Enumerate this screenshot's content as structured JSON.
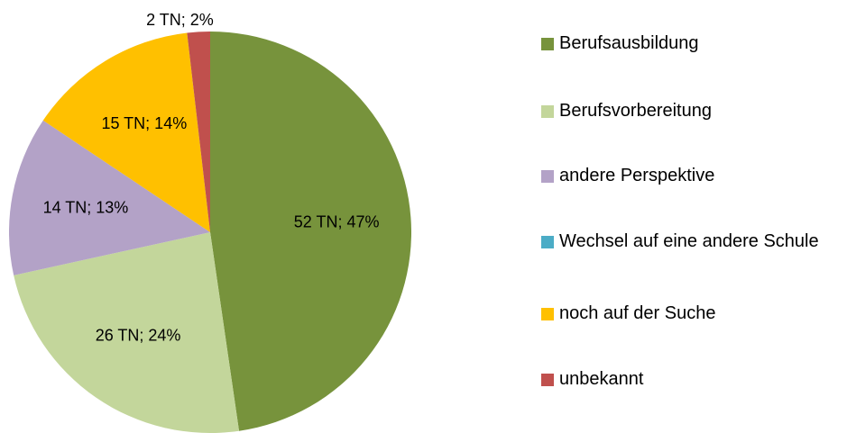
{
  "chart_data": {
    "type": "pie",
    "categories": [
      "Berufsausbildung",
      "Berufsvorbereitung",
      "andere Perspektive",
      "Wechsel auf eine andere Schule",
      "noch auf der Suche",
      "unbekannt"
    ],
    "values": [
      52,
      26,
      14,
      0,
      15,
      2
    ],
    "value_labels": [
      "52 TN;  47%",
      "26 TN;  24%",
      "14 TN;  13%",
      null,
      "15 TN;  14%",
      "2 TN;  2%"
    ],
    "colors": [
      "#77933c",
      "#c3d69b",
      "#b3a2c7",
      "#4bacc6",
      "#ffc000",
      "#c0504d"
    ],
    "legend": "right"
  }
}
